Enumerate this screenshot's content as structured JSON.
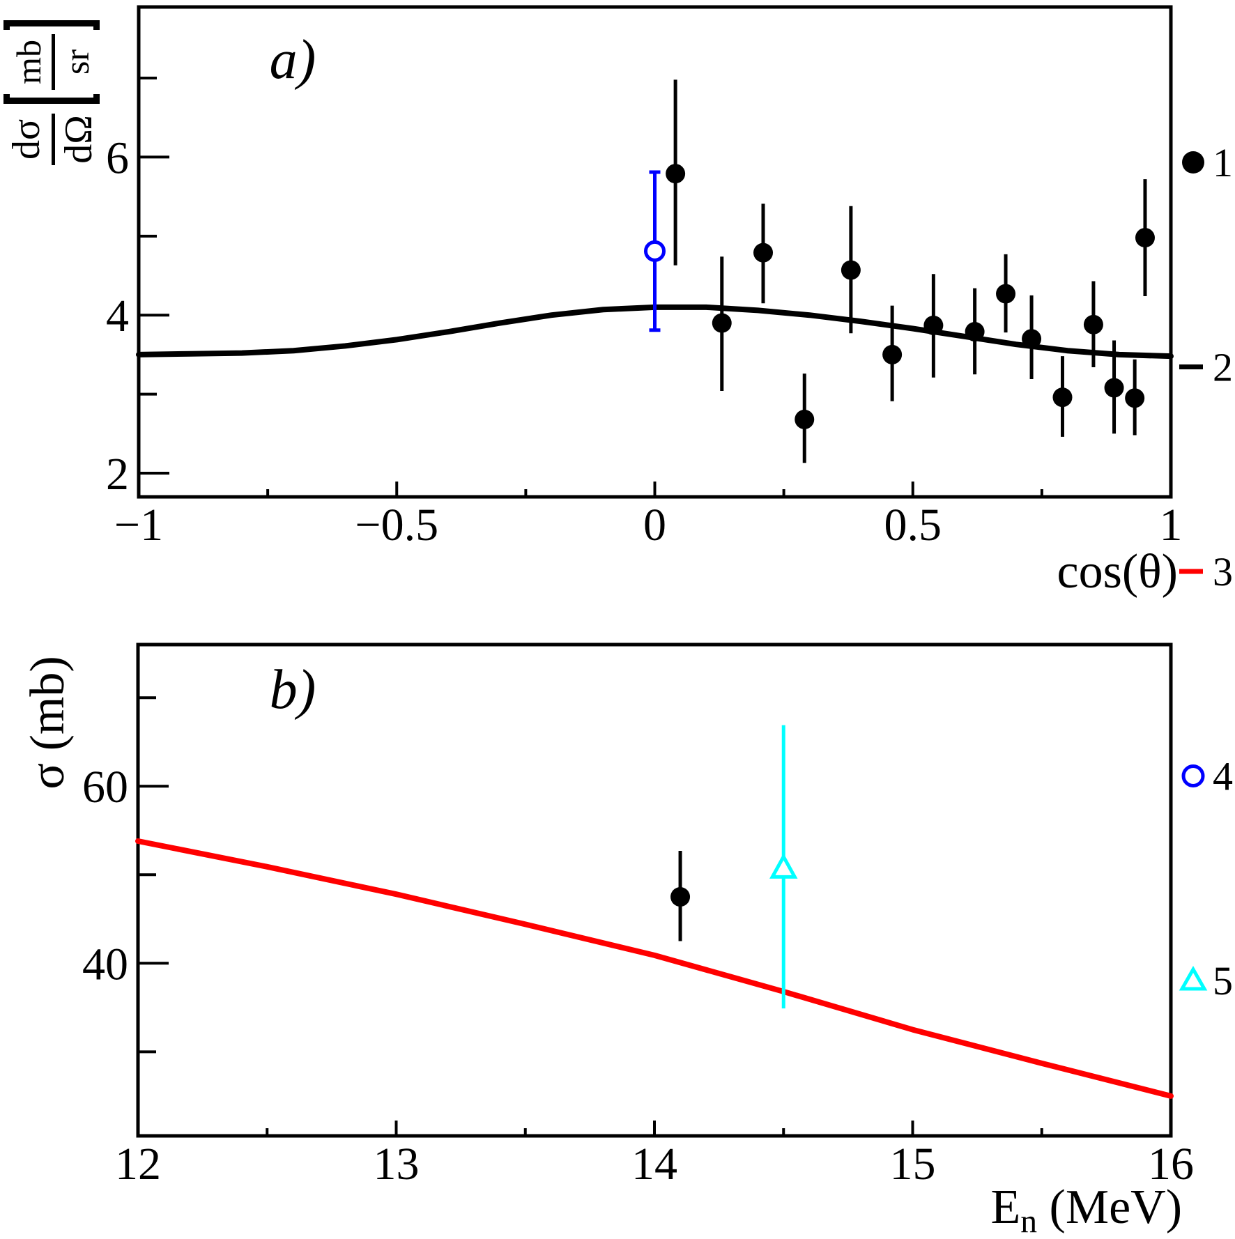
{
  "figure": {
    "background": "#ffffff",
    "frame_color": "#000000"
  },
  "legend": {
    "entries": [
      {
        "label": "1",
        "marker": "filled-circle",
        "color": "#000000"
      },
      {
        "label": "2",
        "marker": "line",
        "color": "#000000"
      },
      {
        "label": "3",
        "marker": "line",
        "color": "#ff0000"
      },
      {
        "label": "4",
        "marker": "open-circle",
        "color": "#0000ff"
      },
      {
        "label": "5",
        "marker": "open-triangle",
        "color": "#00ffff"
      }
    ]
  },
  "chart_data": [
    {
      "id": "a",
      "type": "scatter",
      "title": "a)",
      "xlabel": "cos(θ)",
      "ylabel": {
        "num": "dσ",
        "den": "dΩ",
        "unit_num": "mb",
        "unit_den": "sr"
      },
      "xlim": [
        -1,
        1
      ],
      "ylim": [
        1.7,
        7.9
      ],
      "grid": false,
      "xticks": {
        "major": [
          -1,
          -0.5,
          0,
          0.5,
          1
        ],
        "labels": [
          "−1",
          "−0.5",
          "0",
          "0.5",
          "1"
        ],
        "minor": [
          -0.75,
          -0.25,
          0.25,
          0.75
        ]
      },
      "yticks": {
        "major": [
          2,
          4,
          6
        ],
        "labels": [
          "2",
          "4",
          "6"
        ],
        "minor": [
          3,
          5,
          7
        ]
      },
      "series": [
        {
          "name": "2",
          "kind": "curve",
          "color": "#000000",
          "width": 8,
          "x": [
            -1.0,
            -0.9,
            -0.8,
            -0.7,
            -0.6,
            -0.5,
            -0.4,
            -0.3,
            -0.2,
            -0.1,
            0.0,
            0.1,
            0.2,
            0.3,
            0.4,
            0.5,
            0.6,
            0.7,
            0.8,
            0.9,
            1.0
          ],
          "y": [
            3.5,
            3.51,
            3.52,
            3.55,
            3.61,
            3.69,
            3.79,
            3.9,
            4.0,
            4.07,
            4.1,
            4.1,
            4.06,
            4.0,
            3.92,
            3.83,
            3.73,
            3.63,
            3.55,
            3.5,
            3.48
          ]
        },
        {
          "name": "4",
          "kind": "points",
          "marker": "open-circle",
          "color": "#0000ff",
          "caps": true,
          "points": [
            {
              "x": 0.0,
              "y": 4.81,
              "ep": 1.0,
              "em": 1.0
            }
          ]
        },
        {
          "name": "1",
          "kind": "points",
          "marker": "filled-circle",
          "color": "#000000",
          "points": [
            {
              "x": 0.04,
              "y": 5.79,
              "ep": 1.19,
              "em": 1.16
            },
            {
              "x": 0.13,
              "y": 3.9,
              "ep": 0.84,
              "em": 0.86
            },
            {
              "x": 0.21,
              "y": 4.79,
              "ep": 0.62,
              "em": 0.64
            },
            {
              "x": 0.29,
              "y": 2.68,
              "ep": 0.58,
              "em": 0.55
            },
            {
              "x": 0.38,
              "y": 4.57,
              "ep": 0.81,
              "em": 0.8
            },
            {
              "x": 0.46,
              "y": 3.5,
              "ep": 0.62,
              "em": 0.59
            },
            {
              "x": 0.54,
              "y": 3.87,
              "ep": 0.65,
              "em": 0.66
            },
            {
              "x": 0.62,
              "y": 3.79,
              "ep": 0.55,
              "em": 0.54
            },
            {
              "x": 0.68,
              "y": 4.27,
              "ep": 0.5,
              "em": 0.49
            },
            {
              "x": 0.73,
              "y": 3.7,
              "ep": 0.55,
              "em": 0.51
            },
            {
              "x": 0.79,
              "y": 2.96,
              "ep": 0.52,
              "em": 0.5
            },
            {
              "x": 0.85,
              "y": 3.88,
              "ep": 0.55,
              "em": 0.54
            },
            {
              "x": 0.89,
              "y": 3.08,
              "ep": 0.6,
              "em": 0.58
            },
            {
              "x": 0.93,
              "y": 2.95,
              "ep": 0.49,
              "em": 0.47
            },
            {
              "x": 0.95,
              "y": 4.98,
              "ep": 0.74,
              "em": 0.74
            }
          ]
        }
      ]
    },
    {
      "id": "b",
      "type": "scatter",
      "title": "b)",
      "xlabel": {
        "main": "E",
        "sub": "n",
        "rest": " (MeV)"
      },
      "ylabel": "σ (mb)",
      "xlim": [
        12,
        16
      ],
      "ylim": [
        20.5,
        76
      ],
      "grid": false,
      "xticks": {
        "major": [
          12,
          13,
          14,
          15,
          16
        ],
        "labels": [
          "12",
          "13",
          "14",
          "15",
          "16"
        ],
        "minor": [
          12.5,
          13.5,
          14.5,
          15.5
        ]
      },
      "yticks": {
        "major": [
          40,
          60
        ],
        "labels": [
          "40",
          "60"
        ],
        "minor": [
          30,
          50,
          70
        ]
      },
      "series": [
        {
          "name": "3",
          "kind": "curve",
          "color": "#ff0000",
          "width": 8,
          "x": [
            12,
            12.5,
            13,
            13.5,
            14,
            14.5,
            15,
            15.5,
            16
          ],
          "y": [
            53.8,
            50.9,
            47.8,
            44.4,
            40.9,
            36.8,
            32.5,
            28.7,
            25.0
          ]
        },
        {
          "name": "1",
          "kind": "points",
          "marker": "filled-circle",
          "color": "#000000",
          "points": [
            {
              "x": 14.1,
              "y": 47.5,
              "ep": 5.2,
              "em": 5.0
            }
          ]
        },
        {
          "name": "5",
          "kind": "points",
          "marker": "open-triangle",
          "color": "#00ffff",
          "points": [
            {
              "x": 14.5,
              "y": 50.7,
              "ep": 16.2,
              "em": 15.8
            }
          ]
        }
      ]
    }
  ]
}
